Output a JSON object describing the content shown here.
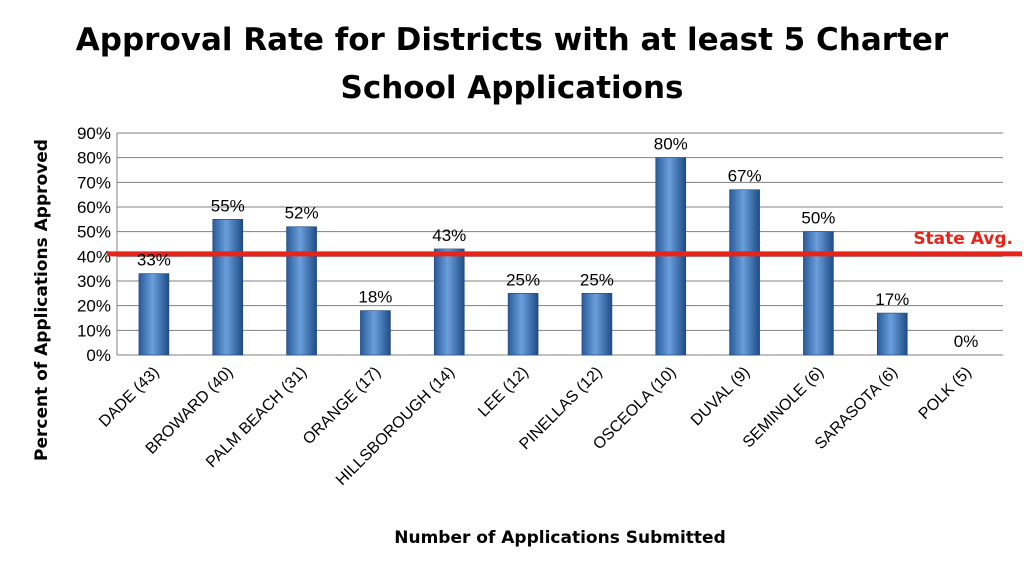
{
  "chart_data": {
    "type": "bar",
    "title": "Approval Rate for Districts with at least 5 Charter School Applications",
    "title_lines": [
      "Approval Rate for Districts with at least 5 Charter",
      "School Applications"
    ],
    "xlabel": "Number of Applications Submitted",
    "ylabel": "Percent of Applications Approved",
    "categories": [
      "DADE (43)",
      "BROWARD (40)",
      "PALM BEACH (31)",
      "ORANGE (17)",
      "HILLSBOROUGH (14)",
      "LEE (12)",
      "PINELLAS (12)",
      "OSCEOLA (10)",
      "DUVAL (9)",
      "SEMINOLE (6)",
      "SARASOTA (6)",
      "POLK (5)"
    ],
    "values": [
      33,
      55,
      52,
      18,
      43,
      25,
      25,
      80,
      67,
      50,
      17,
      0
    ],
    "data_labels": [
      "33%",
      "55%",
      "52%",
      "18%",
      "43%",
      "25%",
      "25%",
      "80%",
      "67%",
      "50%",
      "17%",
      "0%"
    ],
    "ylim": [
      0,
      90
    ],
    "yticks": [
      0,
      10,
      20,
      30,
      40,
      50,
      60,
      70,
      80,
      90
    ],
    "ytick_labels": [
      "0%",
      "10%",
      "20%",
      "30%",
      "40%",
      "50%",
      "60%",
      "70%",
      "80%",
      "90%"
    ],
    "grid": true,
    "reference_line": {
      "label": "State Avg.",
      "value": 41,
      "color": "#e8231a"
    },
    "bar_color": "#3d74b8"
  }
}
